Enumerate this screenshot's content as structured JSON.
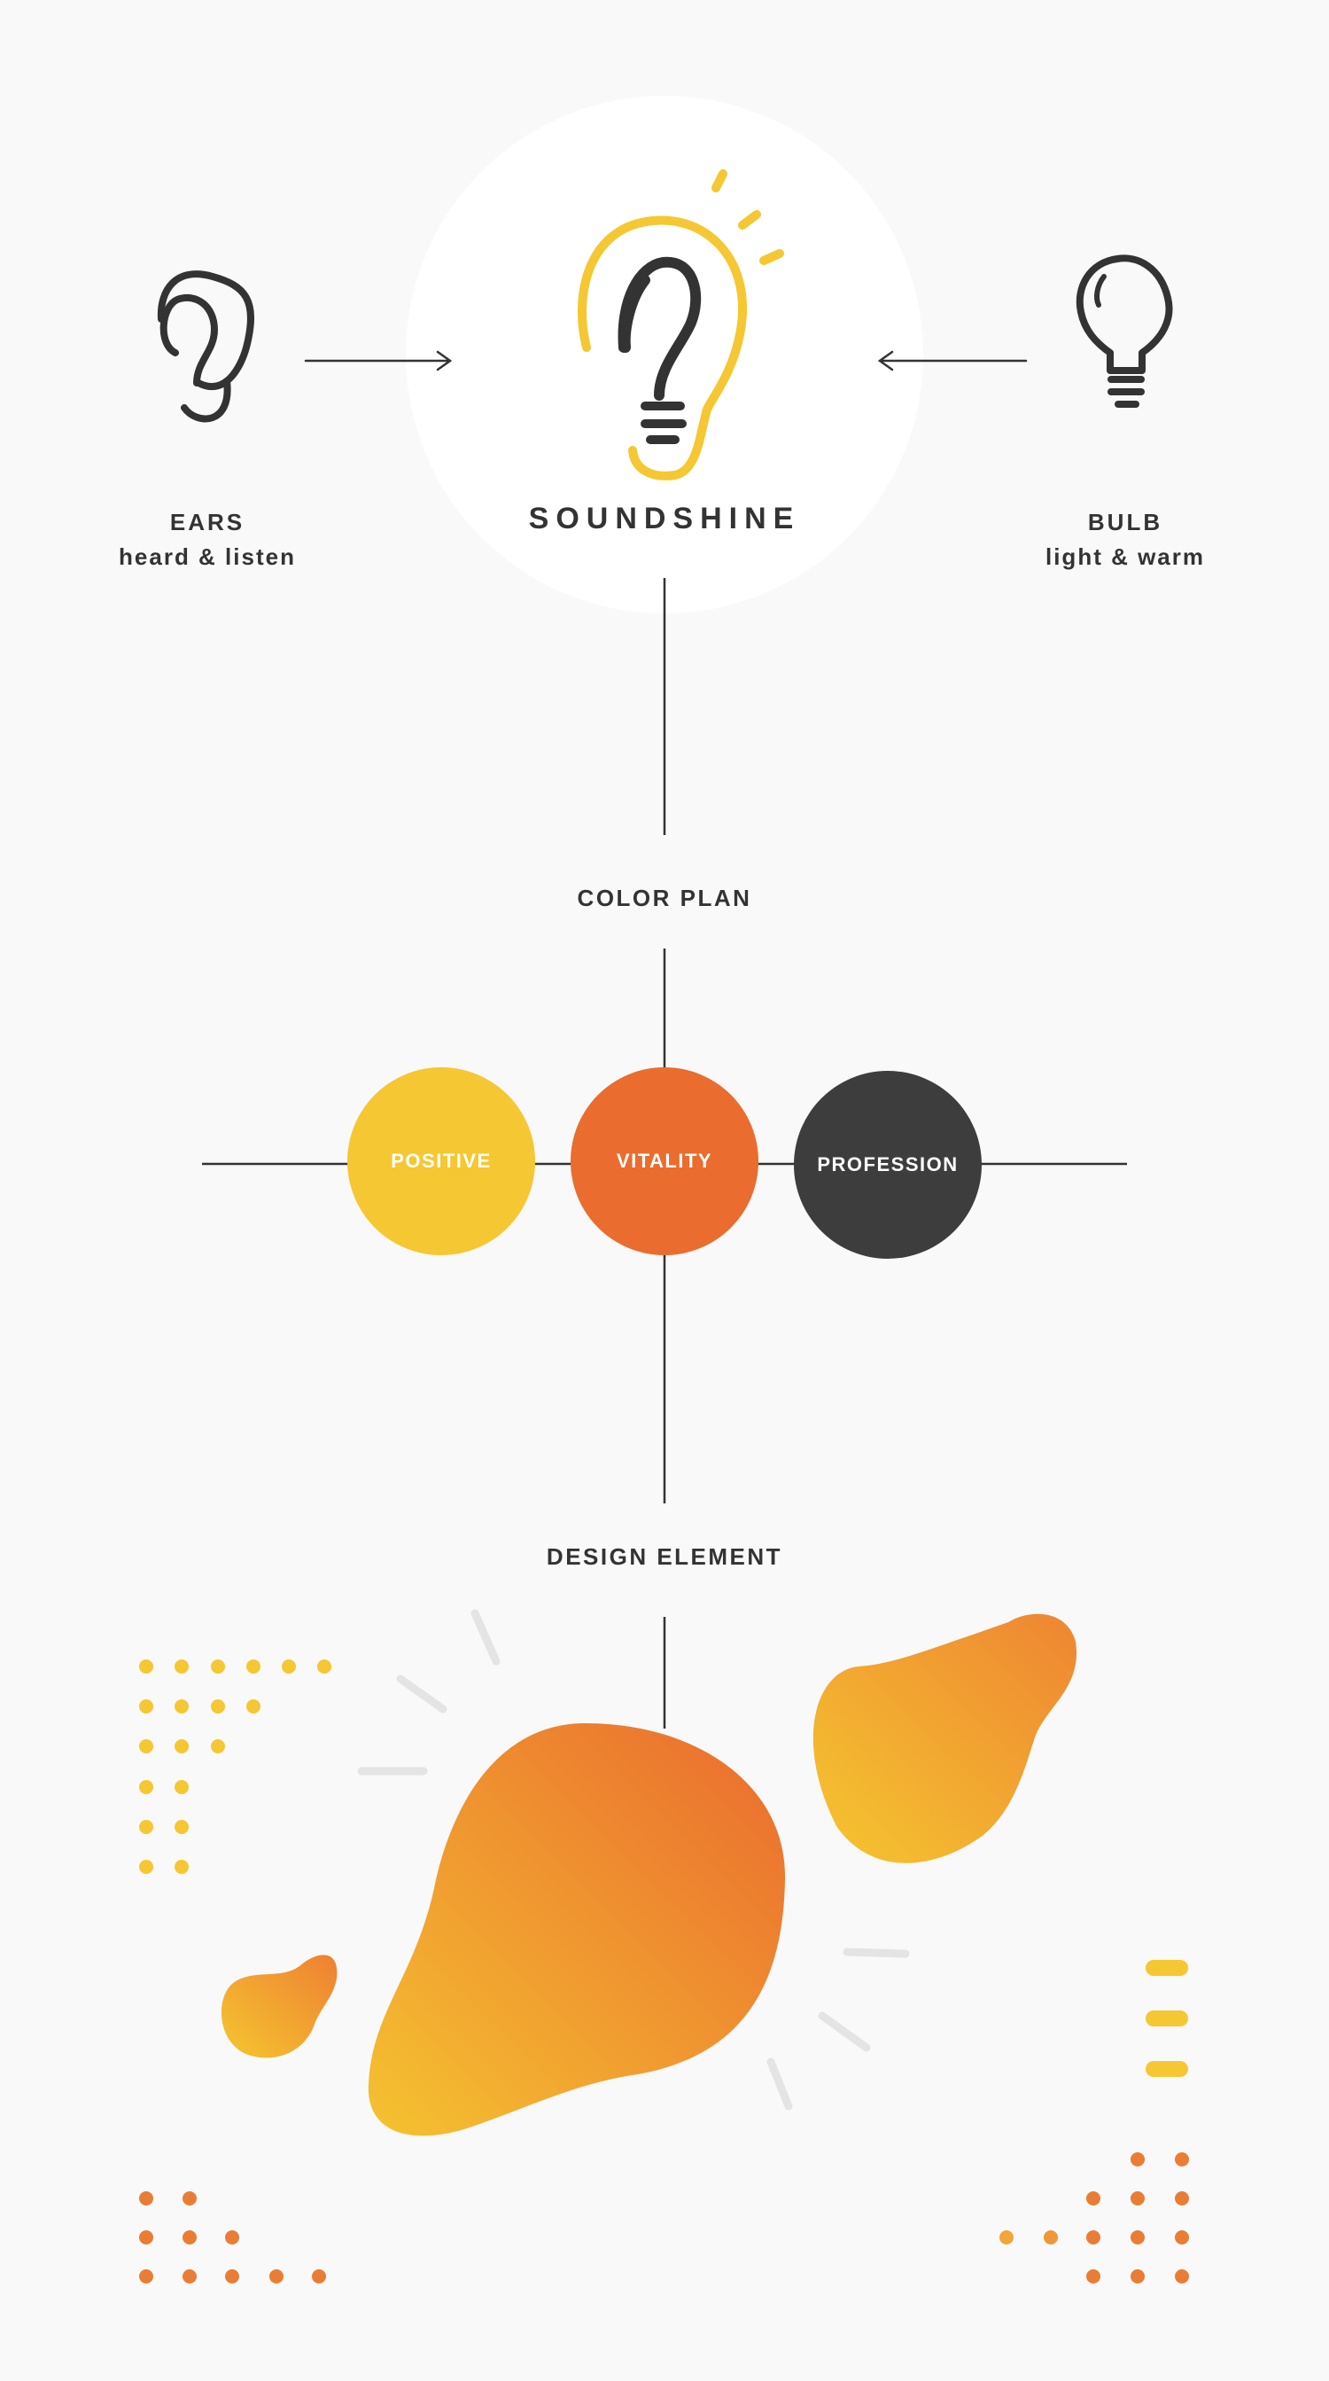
{
  "left_concept": {
    "title": "EARS",
    "description": "heard & listen",
    "icon": "ear-icon"
  },
  "right_concept": {
    "title": "BULB",
    "description": "light & warm",
    "icon": "lightbulb-icon"
  },
  "brand": {
    "name": "SOUNDSHINE",
    "logo": "ear-bulb-logo"
  },
  "color_plan": {
    "title": "COLOR PLAN",
    "swatches": [
      {
        "label": "POSITIVE",
        "color": "#f5c732"
      },
      {
        "label": "VITALITY",
        "color": "#ea6c2e"
      },
      {
        "label": "PROFESSION",
        "color": "#3d3d3d"
      }
    ]
  },
  "design_element": {
    "title": "DESIGN ELEMENT"
  },
  "colors": {
    "yellow": "#f5c732",
    "orange": "#ea6c2e",
    "dark": "#3d3d3d",
    "line": "#333333",
    "ray": "#e4e4e4"
  }
}
